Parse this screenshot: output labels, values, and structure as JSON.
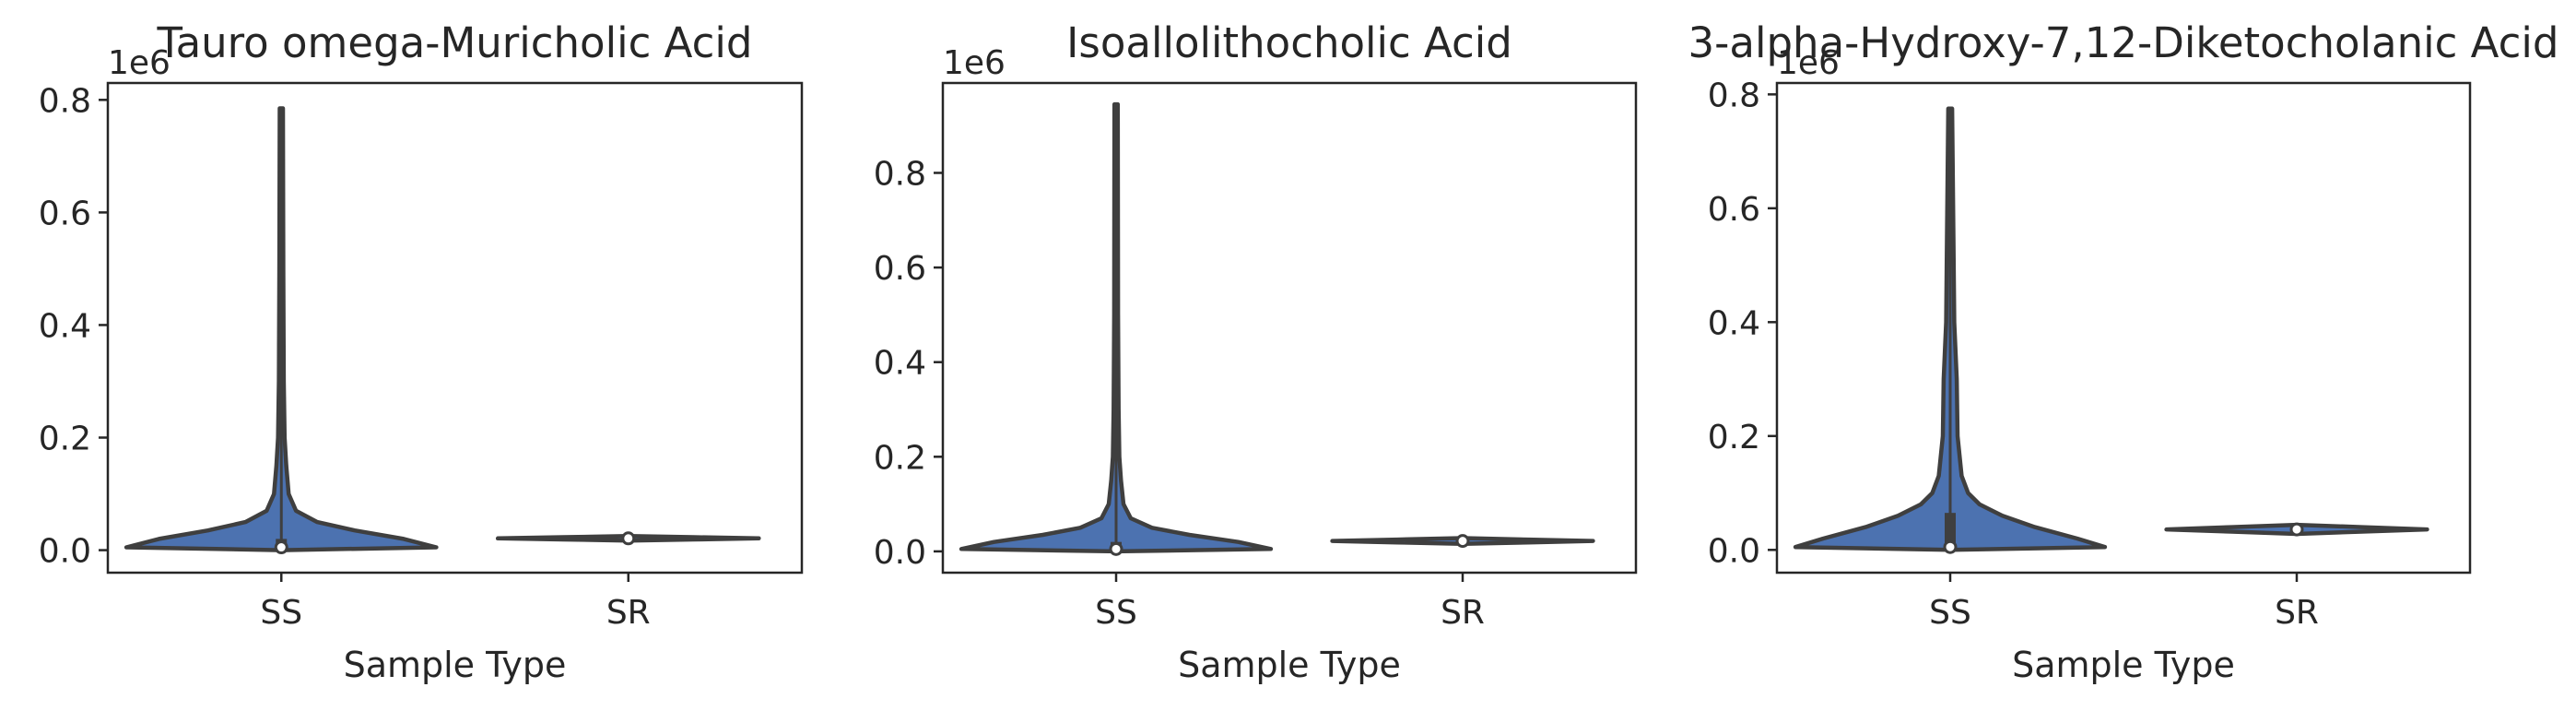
{
  "figure": {
    "background": "#ffffff"
  },
  "style": {
    "violin_fill": "#4c72b0",
    "line_color": "#3f3f3f",
    "text_color": "#262626"
  },
  "chart_data": [
    {
      "type": "violin",
      "title": "Tauro omega-Muricholic Acid",
      "xlabel": "Sample Type",
      "ylabel": "",
      "categories": [
        "SS",
        "SR"
      ],
      "y_offset_label": "1e6",
      "yticks": [
        0,
        0.2,
        0.4,
        0.6,
        0.8
      ],
      "ytick_labels": [
        "0.0",
        "0.2",
        "0.4",
        "0.6",
        "0.8"
      ],
      "ylim": [
        -0.04,
        0.83
      ],
      "violins": [
        {
          "category": "SS",
          "min": 0,
          "max": 0.785,
          "q1": 0.0,
          "median": 0.005,
          "q3": 0.02,
          "profile": [
            [
              0,
              0.0
            ],
            [
              0.005,
              0.95
            ],
            [
              0.02,
              0.75
            ],
            [
              0.035,
              0.45
            ],
            [
              0.05,
              0.22
            ],
            [
              0.07,
              0.09
            ],
            [
              0.1,
              0.045
            ],
            [
              0.15,
              0.03
            ],
            [
              0.2,
              0.02
            ],
            [
              0.3,
              0.015
            ],
            [
              0.5,
              0.012
            ],
            [
              0.785,
              0.01
            ]
          ]
        },
        {
          "category": "SR",
          "min": 0.017,
          "max": 0.025,
          "q1": 0.0195,
          "median": 0.021,
          "q3": 0.0225,
          "profile": [
            [
              0.017,
              0.0
            ],
            [
              0.019,
              0.4
            ],
            [
              0.021,
              0.8
            ],
            [
              0.023,
              0.4
            ],
            [
              0.025,
              0.0
            ]
          ]
        }
      ]
    },
    {
      "type": "violin",
      "title": "Isoallolithocholic Acid",
      "xlabel": "Sample Type",
      "ylabel": "",
      "categories": [
        "SS",
        "SR"
      ],
      "y_offset_label": "1e6",
      "yticks": [
        0,
        0.2,
        0.4,
        0.6,
        0.8
      ],
      "ytick_labels": [
        "0.0",
        "0.2",
        "0.4",
        "0.6",
        "0.8"
      ],
      "ylim": [
        -0.045,
        0.99
      ],
      "violins": [
        {
          "category": "SS",
          "min": 0,
          "max": 0.945,
          "q1": 0.0,
          "median": 0.005,
          "q3": 0.02,
          "profile": [
            [
              0,
              0.0
            ],
            [
              0.005,
              0.95
            ],
            [
              0.02,
              0.75
            ],
            [
              0.035,
              0.45
            ],
            [
              0.05,
              0.22
            ],
            [
              0.07,
              0.09
            ],
            [
              0.1,
              0.045
            ],
            [
              0.15,
              0.03
            ],
            [
              0.2,
              0.02
            ],
            [
              0.3,
              0.015
            ],
            [
              0.5,
              0.012
            ],
            [
              0.945,
              0.01
            ]
          ]
        },
        {
          "category": "SR",
          "min": 0.016,
          "max": 0.028,
          "q1": 0.019,
          "median": 0.022,
          "q3": 0.025,
          "profile": [
            [
              0.016,
              0.0
            ],
            [
              0.019,
              0.4
            ],
            [
              0.022,
              0.8
            ],
            [
              0.025,
              0.4
            ],
            [
              0.028,
              0.0
            ]
          ]
        }
      ]
    },
    {
      "type": "violin",
      "title": "3-alpha-Hydroxy-7,12-Diketocholanic Acid",
      "xlabel": "Sample Type",
      "ylabel": "",
      "categories": [
        "SS",
        "SR"
      ],
      "y_offset_label": "1e6",
      "yticks": [
        0,
        0.2,
        0.4,
        0.6,
        0.8
      ],
      "ytick_labels": [
        "0.0",
        "0.2",
        "0.4",
        "0.6",
        "0.8"
      ],
      "ylim": [
        -0.04,
        0.82
      ],
      "violins": [
        {
          "category": "SS",
          "min": 0,
          "max": 0.775,
          "q1": 0.0,
          "median": 0.005,
          "q3": 0.065,
          "profile": [
            [
              0,
              0.0
            ],
            [
              0.005,
              0.95
            ],
            [
              0.02,
              0.78
            ],
            [
              0.04,
              0.52
            ],
            [
              0.06,
              0.32
            ],
            [
              0.08,
              0.18
            ],
            [
              0.1,
              0.11
            ],
            [
              0.13,
              0.07
            ],
            [
              0.2,
              0.045
            ],
            [
              0.3,
              0.04
            ],
            [
              0.4,
              0.025
            ],
            [
              0.55,
              0.02
            ],
            [
              0.775,
              0.012
            ]
          ]
        },
        {
          "category": "SR",
          "min": 0.028,
          "max": 0.044,
          "q1": 0.033,
          "median": 0.036,
          "q3": 0.039,
          "profile": [
            [
              0.028,
              0.0
            ],
            [
              0.032,
              0.4
            ],
            [
              0.036,
              0.8
            ],
            [
              0.04,
              0.4
            ],
            [
              0.044,
              0.0
            ]
          ]
        }
      ]
    }
  ]
}
